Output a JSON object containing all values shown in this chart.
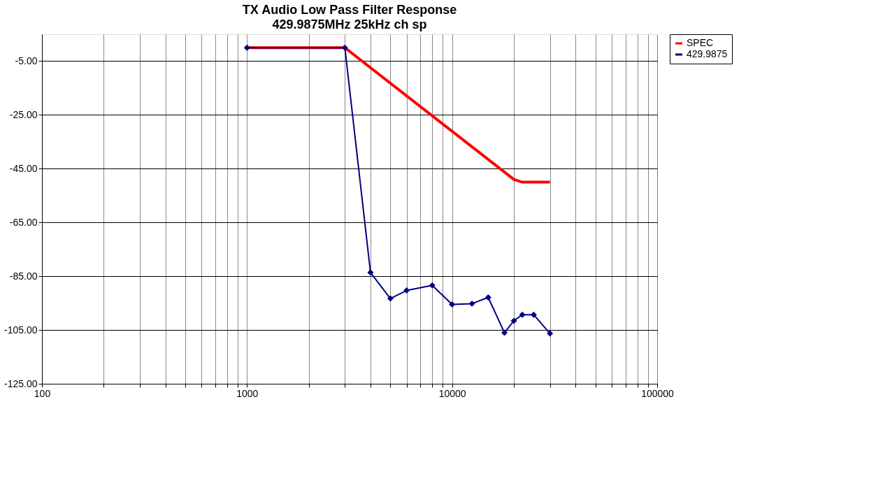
{
  "chart_data": {
    "type": "line",
    "title": "TX Audio Low Pass Filter Response",
    "subtitle": "429.9875MHz 25kHz ch sp",
    "log": "x",
    "grid": true,
    "legend": "right",
    "xlim": [
      100,
      100000
    ],
    "xticks": [
      100,
      {
        "value": 200,
        "label": null
      },
      {
        "value": 300,
        "label": null
      },
      {
        "value": 400,
        "label": null
      },
      {
        "value": 500,
        "label": null
      },
      {
        "value": 600,
        "label": null
      },
      {
        "value": 700,
        "label": null
      },
      {
        "value": 800,
        "label": null
      },
      {
        "value": 900,
        "label": null
      },
      1000,
      {
        "value": 2000,
        "label": null
      },
      {
        "value": 3000,
        "label": null
      },
      {
        "value": 4000,
        "label": null
      },
      {
        "value": 5000,
        "label": null
      },
      {
        "value": 6000,
        "label": null
      },
      {
        "value": 7000,
        "label": null
      },
      {
        "value": 8000,
        "label": null
      },
      {
        "value": 9000,
        "label": null
      },
      10000,
      {
        "value": 20000,
        "label": null
      },
      {
        "value": 30000,
        "label": null
      },
      {
        "value": 40000,
        "label": null
      },
      {
        "value": 50000,
        "label": null
      },
      {
        "value": 60000,
        "label": null
      },
      {
        "value": 70000,
        "label": null
      },
      {
        "value": 80000,
        "label": null
      },
      {
        "value": 90000,
        "label": null
      },
      100000
    ],
    "ylim": [
      -125,
      5
    ],
    "yticks": [
      {
        "value": -125,
        "label": "-125.00"
      },
      {
        "value": -105,
        "label": "-105.00"
      },
      {
        "value": -85,
        "label": "-85.00"
      },
      {
        "value": -65,
        "label": "-65.00"
      },
      {
        "value": -45,
        "label": "-45.00"
      },
      {
        "value": -25,
        "label": "-25.00"
      },
      {
        "value": -5,
        "label": "-5.00"
      }
    ],
    "series": [
      {
        "name": "SPEC",
        "color": "#ff0000",
        "marker": "none",
        "x": [
          1000,
          3000,
          20000,
          22000,
          30000
        ],
        "values": [
          0,
          0,
          -49,
          -50,
          -50
        ]
      },
      {
        "name": "429.9875",
        "color": "#000080",
        "marker": "diamond",
        "x": [
          1000,
          3000,
          4000,
          5000,
          6000,
          8000,
          10000,
          12500,
          15000,
          18000,
          20000,
          22000,
          25000,
          30000
        ],
        "values": [
          0,
          0,
          -83.6,
          -93.3,
          -90.3,
          -88.4,
          -95.5,
          -95.2,
          -92.9,
          -106,
          -101.6,
          -99.3,
          -99.3,
          -106.3
        ]
      }
    ]
  }
}
